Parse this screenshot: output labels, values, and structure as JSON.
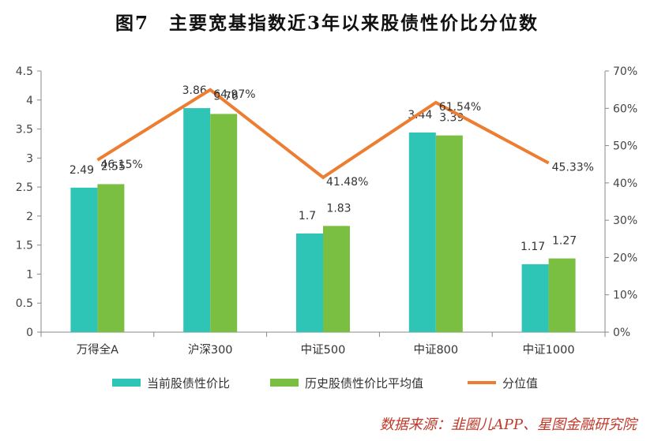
{
  "title": "图7　主要宽基指数近3年以来股债性价比分位数",
  "source": "数据来源：韭圈儿APP、星图金融研究院",
  "colors": {
    "current": "#2ec4b6",
    "history": "#7bbf42",
    "percentile": "#ed7d31",
    "axis": "#888888"
  },
  "chart_data": {
    "type": "bar",
    "categories": [
      "万得全A",
      "沪深300",
      "中证500",
      "中证800",
      "中证1000"
    ],
    "series": [
      {
        "name": "当前股债性价比",
        "kind": "bar",
        "axis": "left",
        "values": [
          2.49,
          3.86,
          1.7,
          3.44,
          1.17
        ],
        "labels": [
          "2.49",
          "3.86",
          "1.7",
          "3.44",
          "1.17"
        ]
      },
      {
        "name": "历史股债性价比平均值",
        "kind": "bar",
        "axis": "left",
        "values": [
          2.55,
          3.76,
          1.83,
          3.39,
          1.27
        ],
        "labels": [
          "2.55",
          "3.76",
          "1.83",
          "3.39",
          "1.27"
        ]
      },
      {
        "name": "分位值",
        "kind": "line",
        "axis": "right",
        "values": [
          46.15,
          64.97,
          41.48,
          61.54,
          45.33
        ],
        "labels": [
          "46.15%",
          "64.97%",
          "41.48%",
          "61.54%",
          "45.33%"
        ]
      }
    ],
    "y_left": {
      "min": 0,
      "max": 4.5,
      "ticks": [
        "0",
        "0.5",
        "1",
        "1.5",
        "2",
        "2.5",
        "3",
        "3.5",
        "4",
        "4.5"
      ]
    },
    "y_right": {
      "min": 0,
      "max": 70,
      "ticks": [
        "0%",
        "10%",
        "20%",
        "30%",
        "40%",
        "50%",
        "60%",
        "70%"
      ]
    },
    "legend_position": "bottom",
    "grid": false
  }
}
